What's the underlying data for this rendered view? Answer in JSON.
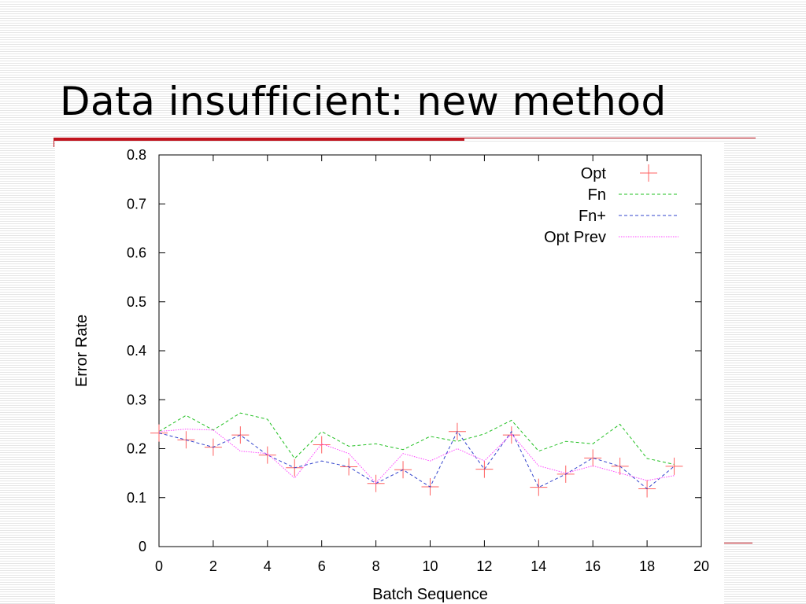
{
  "slide": {
    "title": "Data insufficient: new method"
  },
  "colors": {
    "accent_rule": "#c0141e",
    "background": "#ffffff"
  },
  "chart_data": {
    "type": "line",
    "xlabel": "Batch Sequence",
    "ylabel": "Error Rate",
    "xlim": [
      0,
      20
    ],
    "ylim": [
      0,
      0.8
    ],
    "xticks": [
      0,
      2,
      4,
      6,
      8,
      10,
      12,
      14,
      16,
      18,
      20
    ],
    "yticks": [
      0,
      0.1,
      0.2,
      0.3,
      0.4,
      0.5,
      0.6,
      0.7,
      0.8
    ],
    "grid": false,
    "legend_position": "top-right",
    "x": [
      0,
      1,
      2,
      3,
      4,
      5,
      6,
      7,
      8,
      9,
      10,
      11,
      12,
      13,
      14,
      15,
      16,
      17,
      18,
      19
    ],
    "series": [
      {
        "name": "Opt",
        "style": "points",
        "marker": "+",
        "color": "#ff6060",
        "values": [
          0.232,
          0.218,
          0.203,
          0.228,
          0.187,
          0.161,
          0.208,
          0.163,
          0.129,
          0.157,
          0.122,
          0.235,
          0.158,
          0.228,
          0.121,
          0.148,
          0.181,
          0.164,
          0.118,
          0.164
        ]
      },
      {
        "name": "Fn",
        "style": "dashed",
        "color": "#22c022",
        "values": [
          0.235,
          0.268,
          0.238,
          0.273,
          0.26,
          0.18,
          0.235,
          0.205,
          0.21,
          0.198,
          0.225,
          0.215,
          0.23,
          0.258,
          0.195,
          0.215,
          0.21,
          0.25,
          0.18,
          0.168
        ]
      },
      {
        "name": "Fn+",
        "style": "dashed",
        "color": "#3344cc",
        "values": [
          0.232,
          0.218,
          0.203,
          0.228,
          0.187,
          0.161,
          0.175,
          0.163,
          0.129,
          0.157,
          0.122,
          0.235,
          0.158,
          0.235,
          0.121,
          0.148,
          0.181,
          0.164,
          0.118,
          0.164
        ]
      },
      {
        "name": "Opt Prev",
        "style": "dotted",
        "color": "#ff44ff",
        "values": [
          0.235,
          0.24,
          0.238,
          0.195,
          0.19,
          0.14,
          0.21,
          0.19,
          0.13,
          0.19,
          0.175,
          0.2,
          0.175,
          0.23,
          0.165,
          0.15,
          0.165,
          0.15,
          0.135,
          0.145
        ]
      }
    ]
  }
}
